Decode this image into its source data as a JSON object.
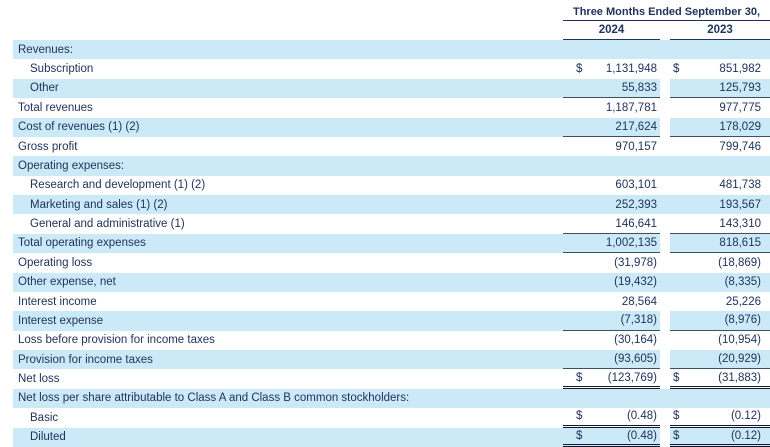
{
  "header": {
    "period_label": "Three Months Ended September 30,",
    "col_2024": "2024",
    "col_2023": "2023"
  },
  "colors": {
    "row_shade": "#cce9f7",
    "text": "#20335c",
    "rule": "#3d4f63",
    "rule_strong": "#10172f"
  },
  "currency_symbol": "$",
  "rows": [
    {
      "label": "Revenues:",
      "indent": 0,
      "shaded": true,
      "dollar": false,
      "v2024": null,
      "v2023": null,
      "rule": "none",
      "gap_white": false
    },
    {
      "label": "Subscription",
      "indent": 1,
      "shaded": false,
      "dollar": true,
      "v2024": "1,131,948",
      "v2023": "851,982",
      "rule": "none",
      "gap_white": false
    },
    {
      "label": "Other",
      "indent": 1,
      "shaded": true,
      "dollar": false,
      "v2024": "55,833",
      "v2023": "125,793",
      "rule": "single",
      "gap_white": true
    },
    {
      "label": "Total revenues",
      "indent": 0,
      "shaded": false,
      "dollar": false,
      "v2024": "1,187,781",
      "v2023": "977,775",
      "rule": "none",
      "gap_white": false
    },
    {
      "label": "Cost of revenues (1) (2)",
      "indent": 0,
      "shaded": true,
      "dollar": false,
      "v2024": "217,624",
      "v2023": "178,029",
      "rule": "single",
      "gap_white": true
    },
    {
      "label": "Gross profit",
      "indent": 0,
      "shaded": false,
      "dollar": false,
      "v2024": "970,157",
      "v2023": "799,746",
      "rule": "none",
      "gap_white": false
    },
    {
      "label": "Operating expenses:",
      "indent": 0,
      "shaded": true,
      "dollar": false,
      "v2024": null,
      "v2023": null,
      "rule": "none",
      "gap_white": false
    },
    {
      "label": "Research and development (1) (2)",
      "indent": 1,
      "shaded": false,
      "dollar": false,
      "v2024": "603,101",
      "v2023": "481,738",
      "rule": "none",
      "gap_white": false
    },
    {
      "label": "Marketing and sales (1) (2)",
      "indent": 1,
      "shaded": true,
      "dollar": false,
      "v2024": "252,393",
      "v2023": "193,567",
      "rule": "none",
      "gap_white": false
    },
    {
      "label": "General and administrative (1)",
      "indent": 1,
      "shaded": false,
      "dollar": false,
      "v2024": "146,641",
      "v2023": "143,310",
      "rule": "single",
      "gap_white": false
    },
    {
      "label": "Total operating expenses",
      "indent": 0,
      "shaded": true,
      "dollar": false,
      "v2024": "1,002,135",
      "v2023": "818,615",
      "rule": "single",
      "gap_white": true
    },
    {
      "label": "Operating loss",
      "indent": 0,
      "shaded": false,
      "dollar": false,
      "v2024": "(31,978)",
      "v2023": "(18,869)",
      "rule": "none",
      "gap_white": false
    },
    {
      "label": "Other expense, net",
      "indent": 0,
      "shaded": true,
      "dollar": false,
      "v2024": "(19,432)",
      "v2023": "(8,335)",
      "rule": "none",
      "gap_white": false
    },
    {
      "label": "Interest income",
      "indent": 0,
      "shaded": false,
      "dollar": false,
      "v2024": "28,564",
      "v2023": "25,226",
      "rule": "none",
      "gap_white": false
    },
    {
      "label": "Interest expense",
      "indent": 0,
      "shaded": true,
      "dollar": false,
      "v2024": "(7,318)",
      "v2023": "(8,976)",
      "rule": "single",
      "gap_white": true
    },
    {
      "label": "Loss before provision for income taxes",
      "indent": 0,
      "shaded": false,
      "dollar": false,
      "v2024": "(30,164)",
      "v2023": "(10,954)",
      "rule": "none",
      "gap_white": false
    },
    {
      "label": "Provision for income taxes",
      "indent": 0,
      "shaded": true,
      "dollar": false,
      "v2024": "(93,605)",
      "v2023": "(20,929)",
      "rule": "single",
      "gap_white": true
    },
    {
      "label": "Net loss",
      "indent": 0,
      "shaded": false,
      "dollar": true,
      "v2024": "(123,769)",
      "v2023": "(31,883)",
      "rule": "double",
      "gap_white": false
    },
    {
      "label": "Net loss per share attributable to Class A and Class B common stockholders:",
      "indent": 0,
      "shaded": true,
      "dollar": false,
      "v2024": null,
      "v2023": null,
      "rule": "none",
      "gap_white": false
    },
    {
      "label": "Basic",
      "indent": 1,
      "shaded": false,
      "dollar": true,
      "v2024": "(0.48)",
      "v2023": "(0.12)",
      "rule": "double",
      "gap_white": false
    },
    {
      "label": "Diluted",
      "indent": 1,
      "shaded": true,
      "dollar": true,
      "v2024": "(0.48)",
      "v2023": "(0.12)",
      "rule": "double",
      "gap_white": true
    }
  ]
}
